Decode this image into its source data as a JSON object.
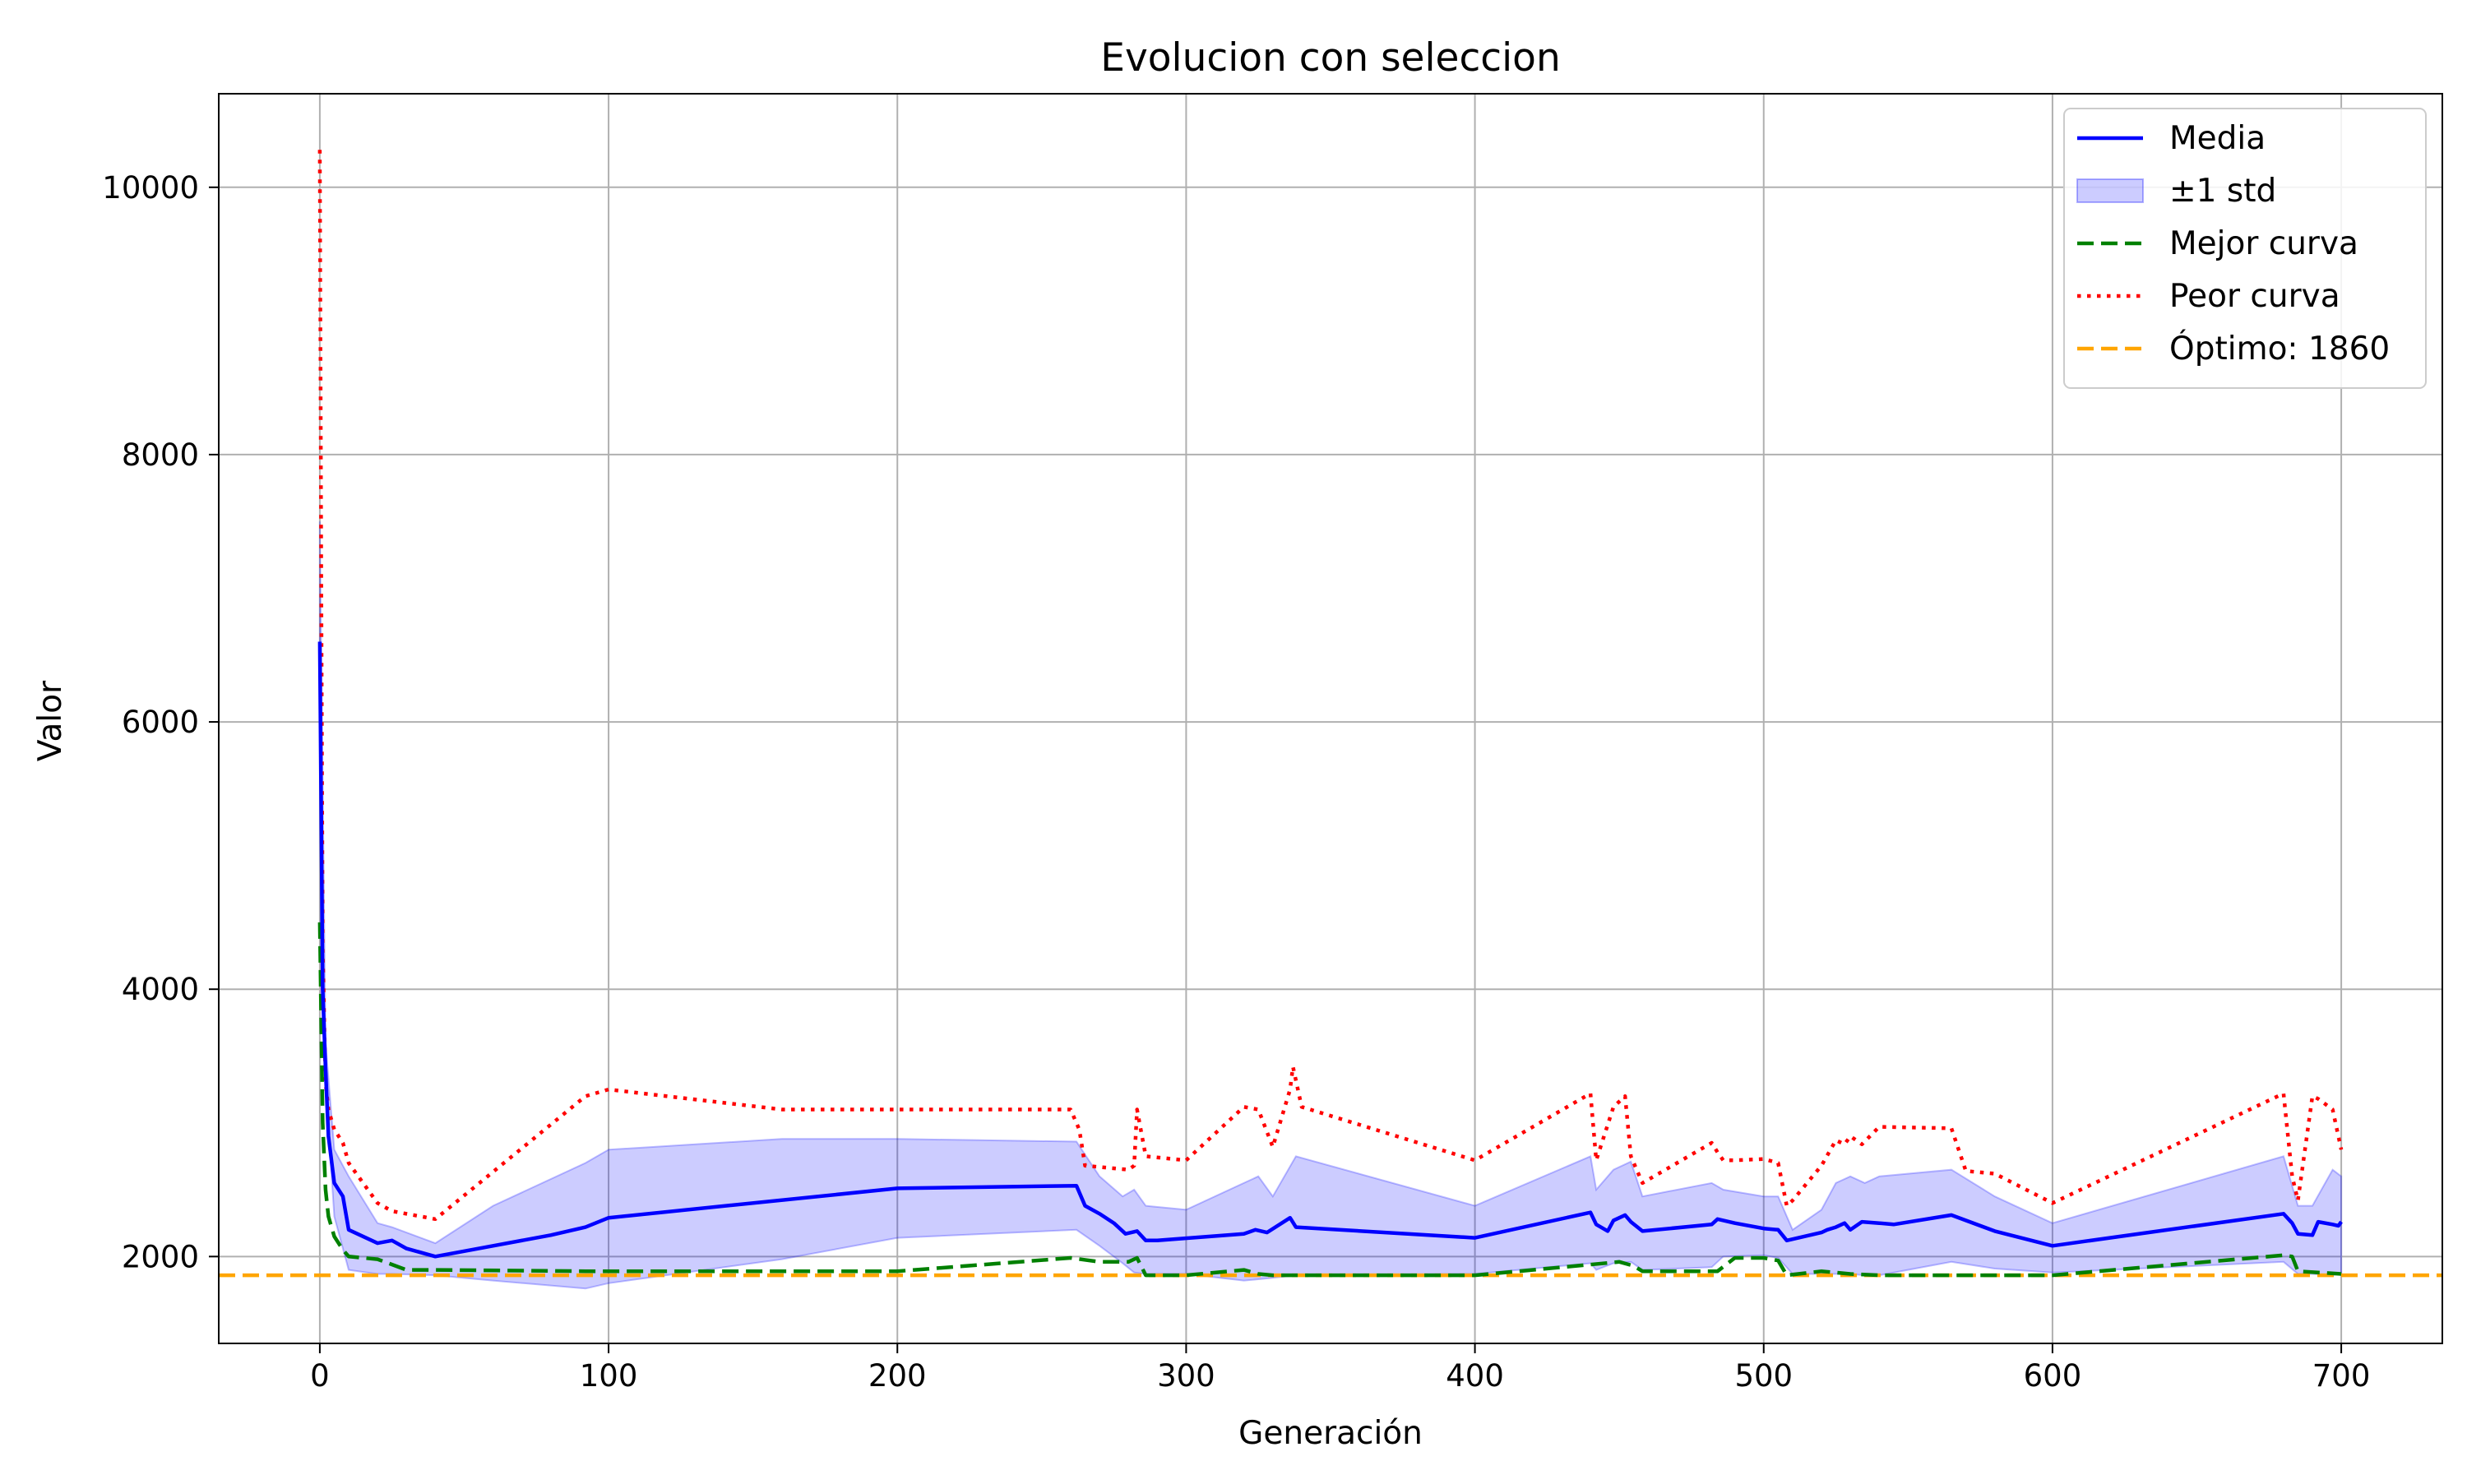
{
  "chart_data": {
    "type": "line",
    "title": "Evolucion con seleccion",
    "xlabel": "Generación",
    "ylabel": "Valor",
    "xlim": [
      -35,
      735
    ],
    "ylim": [
      1350,
      10700
    ],
    "xticks": [
      0,
      100,
      200,
      300,
      400,
      500,
      600,
      700
    ],
    "yticks": [
      2000,
      4000,
      6000,
      8000,
      10000
    ],
    "grid": true,
    "legend_position": "top-right",
    "colors": {
      "mean": "#0000ff",
      "band": "#0000ff",
      "best": "#008000",
      "worst": "#ff0000",
      "optimum": "#ffa500"
    },
    "legend": [
      {
        "key": "mean",
        "label": "Media"
      },
      {
        "key": "band",
        "label": "±1 std"
      },
      {
        "key": "best",
        "label": "Mejor curva"
      },
      {
        "key": "worst",
        "label": "Peor curva"
      },
      {
        "key": "optimum",
        "label": "Óptimo: 1860"
      }
    ],
    "optimum": 1860,
    "series": [
      {
        "name": "Media",
        "x": [
          0,
          1,
          2,
          3,
          5,
          8,
          10,
          20,
          25,
          30,
          40,
          50,
          60,
          80,
          92,
          100,
          200,
          262,
          265,
          270,
          275,
          279,
          283,
          286,
          290,
          320,
          324,
          328,
          336,
          338,
          400,
          440,
          442,
          446,
          448,
          452,
          454,
          458,
          482,
          484,
          486,
          490,
          500,
          505,
          508,
          510,
          520,
          522,
          525,
          528,
          530,
          534,
          540,
          545,
          565,
          580,
          600,
          680,
          683,
          685,
          690,
          692,
          697,
          699,
          700
        ],
        "y": [
          6600,
          4000,
          3400,
          2900,
          2550,
          2450,
          2200,
          2100,
          2120,
          2060,
          2000,
          2040,
          2080,
          2160,
          2220,
          2290,
          2510,
          2530,
          2380,
          2320,
          2250,
          2170,
          2190,
          2120,
          2120,
          2170,
          2200,
          2180,
          2290,
          2220,
          2140,
          2330,
          2240,
          2190,
          2270,
          2310,
          2260,
          2190,
          2240,
          2280,
          2270,
          2250,
          2210,
          2200,
          2120,
          2130,
          2180,
          2200,
          2220,
          2250,
          2200,
          2260,
          2250,
          2240,
          2310,
          2190,
          2080,
          2320,
          2250,
          2170,
          2160,
          2260,
          2240,
          2230,
          2260
        ]
      },
      {
        "name": "±1 std",
        "x": [
          0,
          2,
          5,
          10,
          20,
          25,
          40,
          60,
          92,
          100,
          160,
          200,
          262,
          270,
          278,
          282,
          286,
          300,
          320,
          325,
          330,
          338,
          400,
          440,
          442,
          448,
          454,
          458,
          482,
          486,
          500,
          505,
          510,
          520,
          525,
          530,
          535,
          540,
          565,
          580,
          600,
          680,
          685,
          690,
          697,
          700
        ],
        "upper": [
          7500,
          3600,
          2800,
          2600,
          2250,
          2220,
          2100,
          2380,
          2700,
          2800,
          2880,
          2880,
          2860,
          2600,
          2450,
          2500,
          2380,
          2350,
          2550,
          2600,
          2450,
          2750,
          2380,
          2750,
          2500,
          2650,
          2710,
          2450,
          2550,
          2500,
          2450,
          2450,
          2200,
          2350,
          2550,
          2600,
          2550,
          2600,
          2650,
          2450,
          2250,
          2750,
          2380,
          2380,
          2650,
          2600
        ],
        "lower": [
          5800,
          3300,
          2300,
          1900,
          1870,
          1870,
          1860,
          1820,
          1760,
          1800,
          1980,
          2140,
          2200,
          2080,
          1950,
          1880,
          1870,
          1870,
          1820,
          1830,
          1840,
          1860,
          1870,
          1950,
          1900,
          1950,
          1960,
          1900,
          1920,
          2000,
          2010,
          1990,
          1870,
          1870,
          1870,
          1870,
          1860,
          1860,
          1960,
          1910,
          1880,
          1960,
          1870,
          1870,
          1860,
          1880
        ]
      },
      {
        "name": "Mejor curva",
        "x": [
          0,
          1,
          2,
          3,
          5,
          8,
          10,
          20,
          30,
          40,
          92,
          200,
          260,
          270,
          280,
          283,
          286,
          300,
          320,
          325,
          330,
          400,
          440,
          450,
          455,
          458,
          484,
          490,
          500,
          505,
          508,
          520,
          530,
          540,
          565,
          600,
          680,
          683,
          685,
          700
        ],
        "y": [
          4500,
          3000,
          2500,
          2300,
          2150,
          2050,
          2000,
          1980,
          1900,
          1900,
          1890,
          1890,
          1990,
          1960,
          1960,
          1990,
          1860,
          1860,
          1900,
          1870,
          1860,
          1860,
          1940,
          1960,
          1930,
          1890,
          1890,
          1990,
          1990,
          1970,
          1860,
          1890,
          1870,
          1860,
          1860,
          1860,
          2010,
          2000,
          1890,
          1870
        ]
      },
      {
        "name": "Peor curva",
        "x": [
          0,
          0.5,
          1,
          2,
          3,
          5,
          8,
          10,
          20,
          25,
          40,
          92,
          100,
          160,
          200,
          260,
          263,
          265,
          280,
          282,
          283,
          286,
          300,
          320,
          325,
          330,
          336,
          337,
          340,
          400,
          440,
          442,
          448,
          452,
          454,
          458,
          482,
          484,
          486,
          490,
          500,
          505,
          508,
          510,
          520,
          525,
          528,
          530,
          534,
          540,
          565,
          570,
          580,
          600,
          680,
          683,
          685,
          690,
          692,
          697,
          700
        ],
        "y": [
          10280,
          7000,
          4300,
          3300,
          3100,
          2950,
          2850,
          2700,
          2400,
          2340,
          2280,
          3200,
          3250,
          3100,
          3100,
          3100,
          2950,
          2680,
          2650,
          2680,
          3100,
          2750,
          2720,
          3120,
          3100,
          2820,
          3250,
          3420,
          3120,
          2720,
          3220,
          2720,
          3120,
          3200,
          2750,
          2550,
          2850,
          2780,
          2720,
          2720,
          2730,
          2700,
          2380,
          2420,
          2680,
          2870,
          2840,
          2900,
          2840,
          2970,
          2960,
          2640,
          2620,
          2400,
          3220,
          2600,
          2420,
          3200,
          3180,
          3100,
          2800
        ]
      }
    ]
  }
}
